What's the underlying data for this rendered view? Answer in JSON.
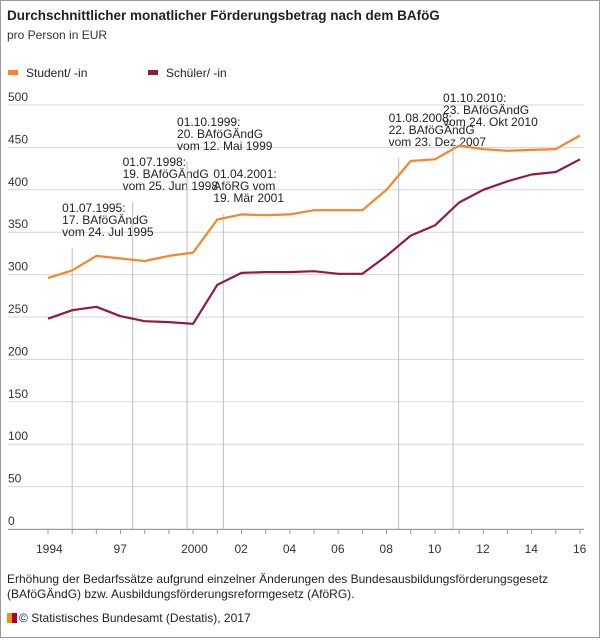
{
  "title": "Durchschnittlicher monatlicher Förderungsbetrag nach dem BAföG",
  "subtitle": "pro Person in EUR",
  "colors": {
    "student": "#f7842a",
    "schueler": "#8e1a48",
    "grid": "#d6d6d6",
    "vline": "#bdbdbd"
  },
  "chart_data": {
    "type": "line",
    "title": "Durchschnittlicher monatlicher Förderungsbetrag nach dem BAföG",
    "ylabel": "pro Person in EUR",
    "xlim": [
      1994,
      2016
    ],
    "ylim": [
      0,
      500
    ],
    "yticks": [
      0,
      50,
      100,
      150,
      200,
      250,
      300,
      350,
      400,
      450,
      500
    ],
    "xticks": [
      {
        "x": 1994,
        "label": "1994"
      },
      {
        "x": 1997,
        "label": "97"
      },
      {
        "x": 2000,
        "label": "2000"
      },
      {
        "x": 2002,
        "label": "02"
      },
      {
        "x": 2004,
        "label": "04"
      },
      {
        "x": 2006,
        "label": "06"
      },
      {
        "x": 2008,
        "label": "08"
      },
      {
        "x": 2010,
        "label": "10"
      },
      {
        "x": 2012,
        "label": "12"
      },
      {
        "x": 2014,
        "label": "14"
      },
      {
        "x": 2016,
        "label": "16"
      }
    ],
    "legend_position": "top-left",
    "series": [
      {
        "name": "Student/ -in",
        "color": "#f7842a",
        "points": [
          [
            1994,
            296
          ],
          [
            1995,
            305
          ],
          [
            1996,
            322
          ],
          [
            1997,
            319
          ],
          [
            1998,
            316
          ],
          [
            1999,
            322
          ],
          [
            2000,
            326
          ],
          [
            2001,
            365
          ],
          [
            2002,
            371
          ],
          [
            2003,
            370
          ],
          [
            2004,
            371
          ],
          [
            2005,
            376
          ],
          [
            2006,
            376
          ],
          [
            2007,
            376
          ],
          [
            2008,
            400
          ],
          [
            2009,
            434
          ],
          [
            2010,
            436
          ],
          [
            2011,
            452
          ],
          [
            2012,
            448
          ],
          [
            2013,
            446
          ],
          [
            2014,
            447
          ],
          [
            2015,
            448
          ],
          [
            2016,
            464
          ]
        ]
      },
      {
        "name": "Schüler/ -in",
        "color": "#8e1a48",
        "points": [
          [
            1994,
            248
          ],
          [
            1995,
            258
          ],
          [
            1996,
            262
          ],
          [
            1997,
            251
          ],
          [
            1998,
            245
          ],
          [
            1999,
            244
          ],
          [
            2000,
            242
          ],
          [
            2001,
            288
          ],
          [
            2002,
            302
          ],
          [
            2003,
            303
          ],
          [
            2004,
            303
          ],
          [
            2005,
            304
          ],
          [
            2006,
            301
          ],
          [
            2007,
            301
          ],
          [
            2008,
            322
          ],
          [
            2009,
            346
          ],
          [
            2010,
            358
          ],
          [
            2011,
            385
          ],
          [
            2012,
            400
          ],
          [
            2013,
            410
          ],
          [
            2014,
            418
          ],
          [
            2015,
            421
          ],
          [
            2016,
            436
          ]
        ]
      }
    ],
    "annotations": [
      {
        "x": 1995.0,
        "lines": [
          "01.07.1995:",
          "17. BAföGÄndG",
          "vom 24. Jul 1995"
        ]
      },
      {
        "x": 1997.5,
        "lines": [
          "01.07.1998:",
          "19. BAföGÄndG",
          "vom 25. Jun 1998"
        ]
      },
      {
        "x": 1999.75,
        "lines": [
          "01.10.1999:",
          "20. BAföGÄndG",
          "vom 12. Mai 1999"
        ]
      },
      {
        "x": 2001.25,
        "lines": [
          "01.04.2001:",
          "AföRG vom",
          "19. Mär 2001"
        ]
      },
      {
        "x": 2008.5,
        "lines": [
          "01.08.2008:",
          "22. BAföGÄndG",
          "vom 23. Dez 2007"
        ]
      },
      {
        "x": 2010.75,
        "lines": [
          "01.10.2010:",
          "23. BAföGÄndG",
          "vom 24. Okt 2010"
        ]
      }
    ]
  },
  "caption": "Erhöhung der Bedarfssätze aufgrund einzelner Änderungen des Bundesausbildungsförderungsgesetz (BAföGÄndG) bzw. Ausbildungsförderungsreformgesetz (AföRG).",
  "source": "Statistisches Bundesamt (Destatis), 2017"
}
